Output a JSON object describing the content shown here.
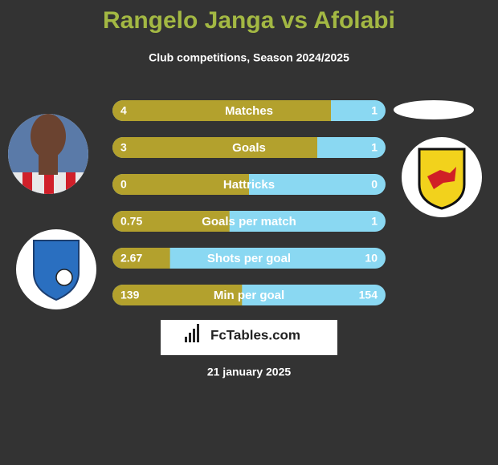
{
  "title": "Rangelo Janga vs Afolabi",
  "subtitle": "Club competitions, Season 2024/2025",
  "rows": [
    {
      "label": "Matches",
      "left": 4,
      "right": 1
    },
    {
      "label": "Goals",
      "left": 3,
      "right": 1
    },
    {
      "label": "Hattricks",
      "left": 0,
      "right": 0
    },
    {
      "label": "Goals per match",
      "left": 0.75,
      "right": 1
    },
    {
      "label": "Shots per goal",
      "left": 2.67,
      "right": 10
    },
    {
      "label": "Min per goal",
      "left": 139,
      "right": 154
    }
  ],
  "colors": {
    "left": "#b3a12d",
    "right": "#8ad8f2"
  },
  "brand": "FcTables.com",
  "date": "21 january 2025"
}
